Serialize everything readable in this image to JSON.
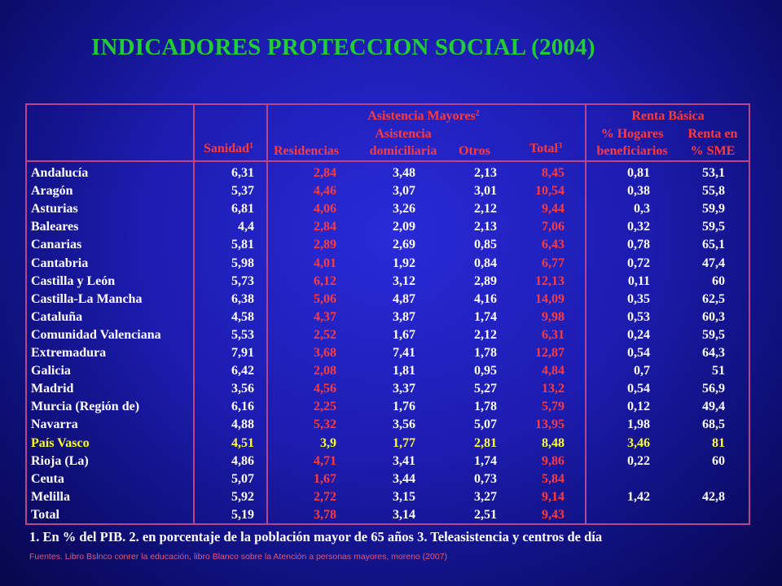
{
  "title": "INDICADORES PROTECCION SOCIAL (2004)",
  "headers": {
    "sanidad": "Sanidad",
    "sanidad_sup": "1",
    "asistencia_mayores": "Asistencia Mayores",
    "asistencia_mayores_sup": "2",
    "residencias": "Residencias",
    "asistencia_l1": "Asistencia",
    "asistencia_l2": "domiciliaria",
    "otros": "Otros",
    "total": "Total",
    "total_sup": "3",
    "renta_basica": "Renta Básica",
    "hogares_l1": "% Hogares",
    "hogares_l2": "beneficiarios",
    "renta_en_l1": "Renta en",
    "renta_en_l2": "% SME"
  },
  "rows": [
    {
      "region": "Andalucía",
      "sanidad": "6,31",
      "residencias": "2,84",
      "domiciliaria": "3,48",
      "otros": "2,13",
      "total": "8,45",
      "hogares": "0,81",
      "renta": "53,1"
    },
    {
      "region": "Aragón",
      "sanidad": "5,37",
      "residencias": "4,46",
      "domiciliaria": "3,07",
      "otros": "3,01",
      "total": "10,54",
      "hogares": "0,38",
      "renta": "55,8"
    },
    {
      "region": "Asturias",
      "sanidad": "6,81",
      "residencias": "4,06",
      "domiciliaria": "3,26",
      "otros": "2,12",
      "total": "9,44",
      "hogares": "0,3",
      "renta": "59,9"
    },
    {
      "region": "Baleares",
      "sanidad": "4,4",
      "residencias": "2,84",
      "domiciliaria": "2,09",
      "otros": "2,13",
      "total": "7,06",
      "hogares": "0,32",
      "renta": "59,5"
    },
    {
      "region": "Canarias",
      "sanidad": "5,81",
      "residencias": "2,89",
      "domiciliaria": "2,69",
      "otros": "0,85",
      "total": "6,43",
      "hogares": "0,78",
      "renta": "65,1"
    },
    {
      "region": "Cantabria",
      "sanidad": "5,98",
      "residencias": "4,01",
      "domiciliaria": "1,92",
      "otros": "0,84",
      "total": "6,77",
      "hogares": "0,72",
      "renta": "47,4"
    },
    {
      "region": "Castilla y León",
      "sanidad": "5,73",
      "residencias": "6,12",
      "domiciliaria": "3,12",
      "otros": "2,89",
      "total": "12,13",
      "hogares": "0,11",
      "renta": "60"
    },
    {
      "region": "Castilla-La Mancha",
      "sanidad": "6,38",
      "residencias": "5,06",
      "domiciliaria": "4,87",
      "otros": "4,16",
      "total": "14,09",
      "hogares": "0,35",
      "renta": "62,5"
    },
    {
      "region": "Cataluña",
      "sanidad": "4,58",
      "residencias": "4,37",
      "domiciliaria": "3,87",
      "otros": "1,74",
      "total": "9,98",
      "hogares": "0,53",
      "renta": "60,3"
    },
    {
      "region": "Comunidad Valenciana",
      "sanidad": "5,53",
      "residencias": "2,52",
      "domiciliaria": "1,67",
      "otros": "2,12",
      "total": "6,31",
      "hogares": "0,24",
      "renta": "59,5"
    },
    {
      "region": "Extremadura",
      "sanidad": "7,91",
      "residencias": "3,68",
      "domiciliaria": "7,41",
      "otros": "1,78",
      "total": "12,87",
      "hogares": "0,54",
      "renta": "64,3"
    },
    {
      "region": "Galicia",
      "sanidad": "6,42",
      "residencias": "2,08",
      "domiciliaria": "1,81",
      "otros": "0,95",
      "total": "4,84",
      "hogares": "0,7",
      "renta": "51"
    },
    {
      "region": "Madrid",
      "sanidad": "3,56",
      "residencias": "4,56",
      "domiciliaria": "3,37",
      "otros": "5,27",
      "total": "13,2",
      "hogares": "0,54",
      "renta": "56,9"
    },
    {
      "region": "Murcia (Región de)",
      "sanidad": "6,16",
      "residencias": "2,25",
      "domiciliaria": "1,76",
      "otros": "1,78",
      "total": "5,79",
      "hogares": "0,12",
      "renta": "49,4"
    },
    {
      "region": "Navarra",
      "sanidad": "4,88",
      "residencias": "5,32",
      "domiciliaria": "3,56",
      "otros": "5,07",
      "total": "13,95",
      "hogares": "1,98",
      "renta": "68,5"
    },
    {
      "region": "País Vasco",
      "sanidad": "4,51",
      "residencias": "3,9",
      "domiciliaria": "1,77",
      "otros": "2,81",
      "total": "8,48",
      "hogares": "3,46",
      "renta": "81"
    },
    {
      "region": "Rioja (La)",
      "sanidad": "4,86",
      "residencias": "4,71",
      "domiciliaria": "3,41",
      "otros": "1,74",
      "total": "9,86",
      "hogares": "0,22",
      "renta": "60"
    },
    {
      "region": "Ceuta",
      "sanidad": "5,07",
      "residencias": "1,67",
      "domiciliaria": "3,44",
      "otros": "0,73",
      "total": "5,84",
      "hogares": "",
      "renta": ""
    },
    {
      "region": "Melilla",
      "sanidad": "5,92",
      "residencias": "2,72",
      "domiciliaria": "3,15",
      "otros": "3,27",
      "total": "9,14",
      "hogares": "1,42",
      "renta": "42,8"
    },
    {
      "region": "Total",
      "sanidad": "5,19",
      "residencias": "3,78",
      "domiciliaria": "3,14",
      "otros": "2,51",
      "total": "9,43",
      "hogares": "",
      "renta": ""
    }
  ],
  "highlight_region": "País Vasco",
  "footnote": "1. En % del PIB. 2. en porcentaje de la población mayor de 65 años 3. Teleasistencia y centros de día",
  "source": "Fuentes. Libro Bslnco conrer la educación, libro Blanco sobre la Atención a personas mayores, moreno (2007)",
  "colors": {
    "background": "#1c1cb0",
    "title": "#22cc33",
    "grid": "#b8468a",
    "header_text": "#ff3c3c",
    "number_text": "#ffffff",
    "highlight_text": "#ffff33",
    "source_text": "#e05a78"
  }
}
